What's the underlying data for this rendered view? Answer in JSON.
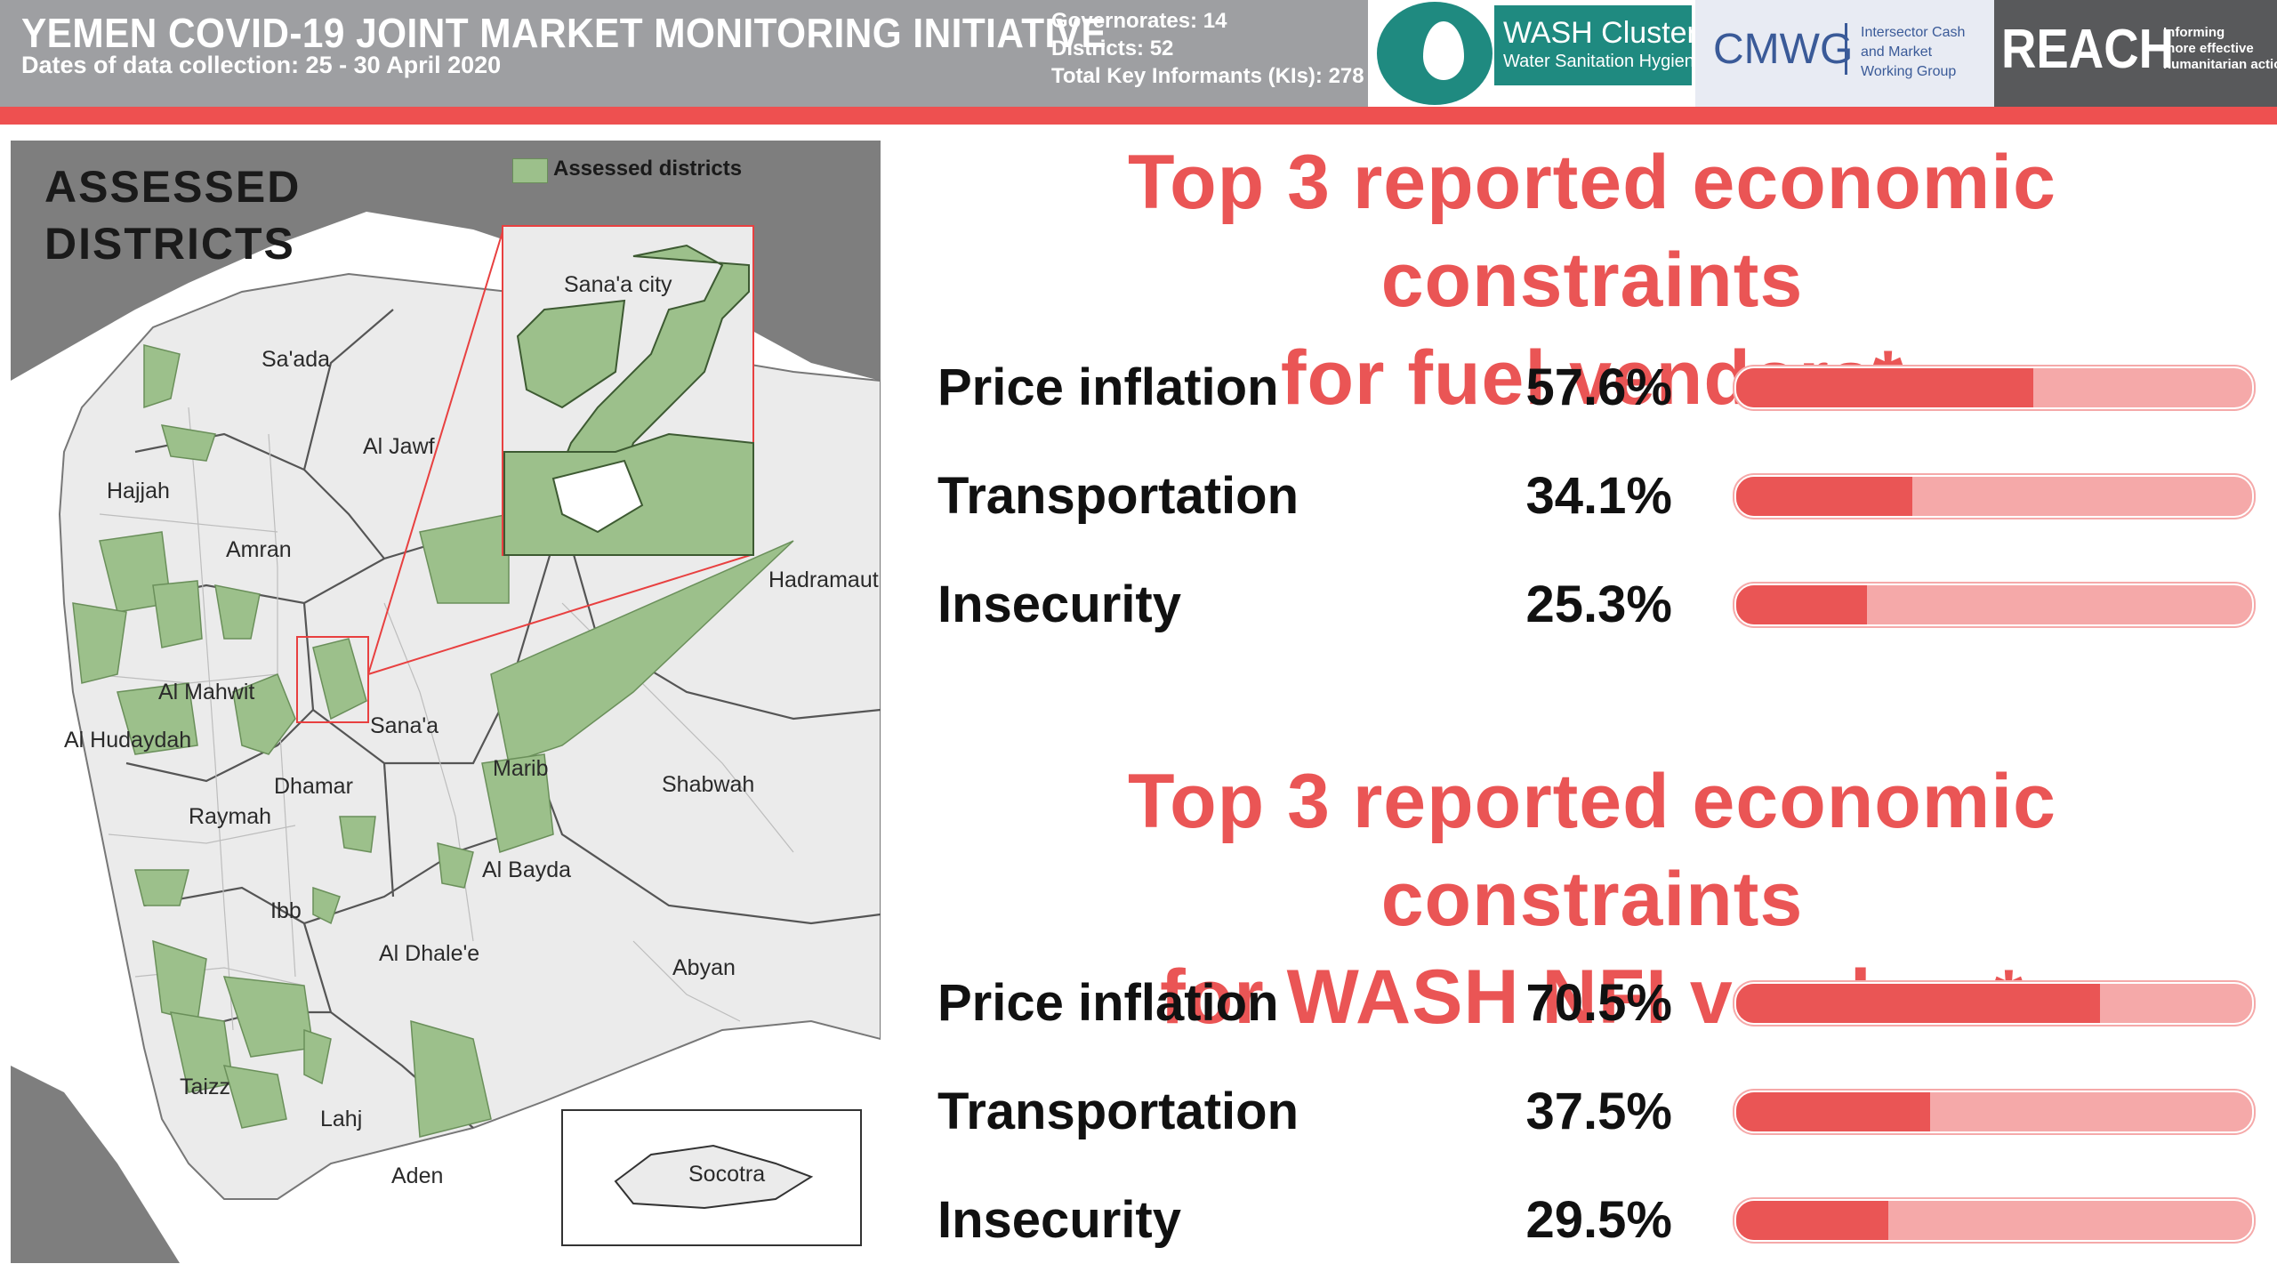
{
  "header": {
    "title": "YEMEN COVID-19 JOINT MARKET MONITORING INITIATIVE",
    "subtitle": "Dates of data collection: 25 - 30 April 2020",
    "stats": {
      "governorates": "Governorates: 14",
      "districts": "Districts: 52",
      "key_informants": "Total Key Informants (KIs): 278"
    },
    "logos": {
      "wash_title": "WASH Cluster",
      "wash_sub": "Water Sanitation Hygiene",
      "cmwg": "CMWG",
      "cmwg_l1": "Intersector Cash",
      "cmwg_l2": "and Market",
      "cmwg_l3": "Working Group",
      "reach": "REACH",
      "reach_l1": "Informing",
      "reach_l2": "more effective",
      "reach_l3": "humanitarian action"
    }
  },
  "map": {
    "title_line1": "ASSESSED",
    "title_line2": "DISTRICTS",
    "legend_label": "Assessed districts",
    "labels": {
      "sanaa_city": "Sana'a city",
      "saada": "Sa'ada",
      "al_jawf": "Al Jawf",
      "hajjah": "Hajjah",
      "amran": "Amran",
      "hadramaut": "Hadramaut",
      "al_mahwit": "Al Mahwit",
      "al_hudaydah": "Al Hudaydah",
      "sanaa": "Sana'a",
      "marib": "Marib",
      "shabwah": "Shabwah",
      "dhamar": "Dhamar",
      "raymah": "Raymah",
      "al_bayda": "Al Bayda",
      "ibb": "Ibb",
      "al_dhalee": "Al Dhale'e",
      "abyan": "Abyan",
      "taizz": "Taizz",
      "lahj": "Lahj",
      "aden": "Aden",
      "socotra": "Socotra"
    }
  },
  "fuel": {
    "title_line1": "Top 3 reported economic constraints",
    "title_line2": "for fuel vendors*",
    "rows": [
      {
        "label": "Price inflation",
        "value": "57.6%",
        "pct": 57.6
      },
      {
        "label": "Transportation",
        "value": "34.1%",
        "pct": 34.1
      },
      {
        "label": "Insecurity",
        "value": "25.3%",
        "pct": 25.3
      }
    ]
  },
  "wash": {
    "title_line1": "Top 3 reported economic constraints",
    "title_line2": "for WASH NFI vendors*",
    "rows": [
      {
        "label": "Price inflation",
        "value": "70.5%",
        "pct": 70.5
      },
      {
        "label": "Transportation",
        "value": "37.5%",
        "pct": 37.5
      },
      {
        "label": "Insecurity",
        "value": "29.5%",
        "pct": 29.5
      }
    ]
  },
  "colors": {
    "accent_red": "#ea5555",
    "bar_light": "#f5a9a9",
    "assessed_green": "#9cc08b",
    "header_gray": "#9e9fa2"
  }
}
